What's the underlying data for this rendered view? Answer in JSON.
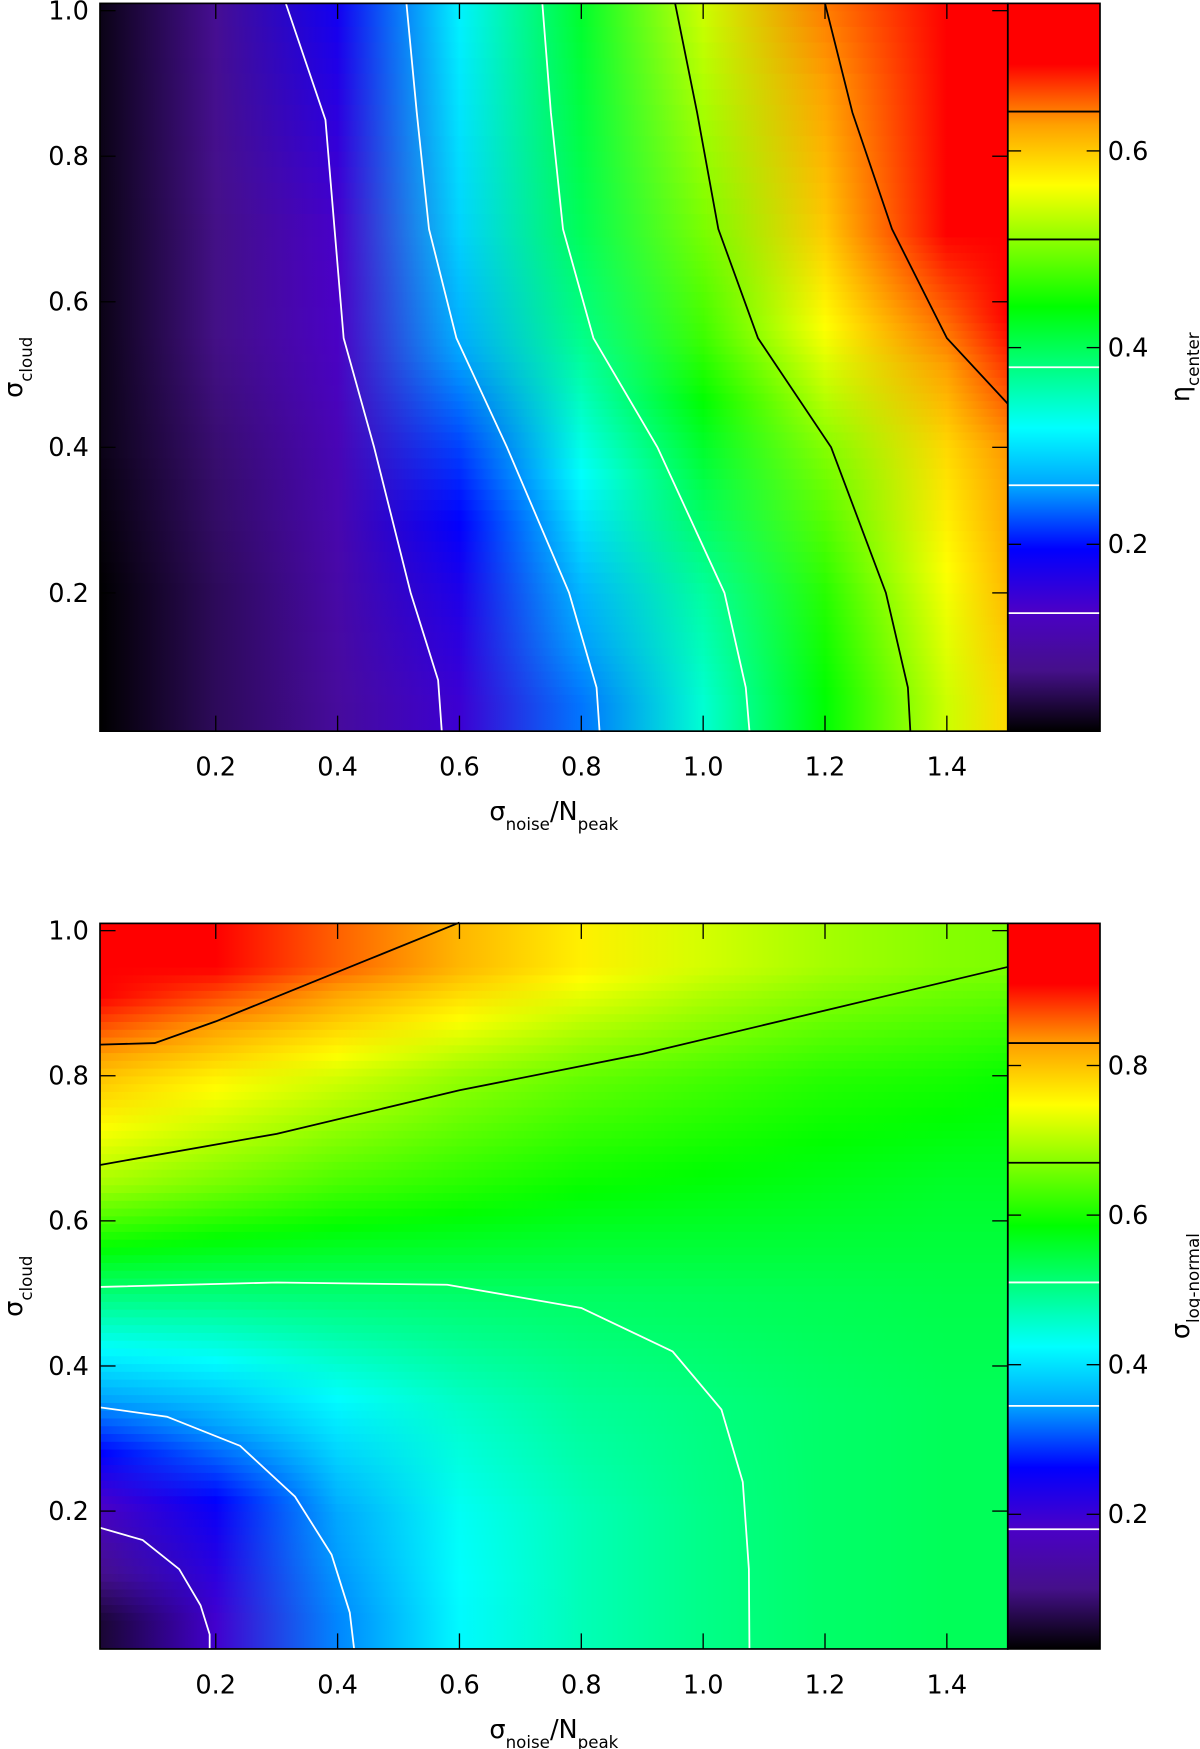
{
  "chart_data": [
    {
      "type": "heatmap",
      "x_label": [
        "σ",
        "noise",
        "/N",
        "peak"
      ],
      "y_label": [
        "σ",
        "cloud"
      ],
      "colorbar_label": [
        "η",
        "center"
      ],
      "xlim": [
        0.01,
        1.5
      ],
      "ylim": [
        0.01,
        1.01
      ],
      "xticks": [
        0.2,
        0.4,
        0.6,
        0.8,
        {
          "value": 1,
          "label": "1.0"
        },
        1.2,
        1.4
      ],
      "yticks": [
        0.2,
        0.4,
        0.6,
        0.8,
        {
          "value": 1,
          "label": "1.0"
        }
      ],
      "clim": [
        0.01,
        0.75
      ],
      "cticks": [
        0.2,
        0.4,
        0.6
      ],
      "colormap": [
        "#000000",
        "#45108a",
        "#4a00c8",
        "#0000ff",
        "#00a0ff",
        "#00ffff",
        "#00ff80",
        "#00ff00",
        "#80ff00",
        "#ffff00",
        "#ffa000",
        "#ff0000",
        "#ff0000"
      ],
      "x": [
        0.01,
        0.2,
        0.4,
        0.6,
        0.8,
        1.0,
        1.2,
        1.4,
        1.5
      ],
      "y": [
        0.05,
        0.2,
        0.4,
        0.55,
        0.7,
        1.0
      ],
      "z": [
        [
          0.01,
          0.05,
          0.09,
          0.145,
          0.24,
          0.34,
          0.44,
          0.54,
          0.59
        ],
        [
          0.01,
          0.05,
          0.1,
          0.17,
          0.27,
          0.365,
          0.46,
          0.56,
          0.61
        ],
        [
          0.02,
          0.06,
          0.115,
          0.22,
          0.33,
          0.42,
          0.505,
          0.59,
          0.63
        ],
        [
          0.02,
          0.07,
          0.13,
          0.265,
          0.375,
          0.47,
          0.56,
          0.64,
          0.68
        ],
        [
          0.02,
          0.07,
          0.135,
          0.29,
          0.4,
          0.5,
          0.6,
          0.69,
          0.72
        ],
        [
          0.02,
          0.08,
          0.18,
          0.31,
          0.42,
          0.54,
          0.64,
          0.72,
          0.75
        ]
      ],
      "contours": [
        {
          "level": 0.13,
          "color": "#ffffff",
          "x": [
            0.315,
            0.38,
            0.395,
            0.41,
            0.46,
            0.52,
            0.565,
            0.571
          ],
          "y": [
            1.01,
            0.85,
            0.7,
            0.55,
            0.4,
            0.2,
            0.08,
            0.01
          ]
        },
        {
          "level": 0.26,
          "color": "#ffffff",
          "x": [
            0.513,
            0.53,
            0.55,
            0.595,
            0.678,
            0.78,
            0.825,
            0.83
          ],
          "y": [
            1.01,
            0.86,
            0.7,
            0.55,
            0.4,
            0.2,
            0.07,
            0.01
          ]
        },
        {
          "level": 0.38,
          "color": "#ffffff",
          "x": [
            0.736,
            0.75,
            0.77,
            0.82,
            0.925,
            1.035,
            1.07,
            1.076
          ],
          "y": [
            1.01,
            0.86,
            0.7,
            0.55,
            0.4,
            0.2,
            0.07,
            0.01
          ]
        },
        {
          "level": 0.51,
          "color": "#000000",
          "x": [
            0.954,
            0.99,
            1.025,
            1.09,
            1.21,
            1.3,
            1.336,
            1.34
          ],
          "y": [
            1.01,
            0.86,
            0.7,
            0.55,
            0.4,
            0.2,
            0.07,
            0.01
          ]
        },
        {
          "level": 0.64,
          "color": "#000000",
          "x": [
            1.2,
            1.245,
            1.31,
            1.4,
            1.5
          ],
          "y": [
            1.01,
            0.86,
            0.7,
            0.55,
            0.46
          ]
        }
      ]
    },
    {
      "type": "heatmap",
      "x_label": [
        "σ",
        "noise",
        "/N",
        "peak"
      ],
      "y_label": [
        "σ",
        "cloud"
      ],
      "colorbar_label": [
        "σ",
        "log-normal"
      ],
      "xlim": [
        0.01,
        1.5
      ],
      "ylim": [
        0.01,
        1.01
      ],
      "xticks": [
        0.2,
        0.4,
        0.6,
        0.8,
        {
          "value": 1,
          "label": "1.0"
        },
        1.2,
        1.4
      ],
      "yticks": [
        0.2,
        0.4,
        0.6,
        0.8,
        {
          "value": 1,
          "label": "1.0"
        }
      ],
      "clim": [
        0.02,
        0.99
      ],
      "cticks": [
        0.2,
        0.4,
        0.6,
        0.8
      ],
      "colormap": [
        "#000000",
        "#45108a",
        "#4a00c8",
        "#0000ff",
        "#00a0ff",
        "#00ffff",
        "#00ff80",
        "#00ff00",
        "#80ff00",
        "#ffff00",
        "#ffa000",
        "#ff0000",
        "#ff0000"
      ],
      "x": [
        0.01,
        0.2,
        0.4,
        0.6,
        0.8,
        1.0,
        1.2,
        1.4,
        1.5
      ],
      "y": [
        0.05,
        0.2,
        0.35,
        0.5,
        0.65,
        0.8,
        0.95
      ],
      "z": [
        [
          0.05,
          0.19,
          0.33,
          0.42,
          0.47,
          0.5,
          0.52,
          0.53,
          0.53
        ],
        [
          0.17,
          0.25,
          0.35,
          0.43,
          0.47,
          0.5,
          0.52,
          0.53,
          0.53
        ],
        [
          0.34,
          0.37,
          0.42,
          0.46,
          0.49,
          0.505,
          0.52,
          0.53,
          0.53
        ],
        [
          0.51,
          0.51,
          0.515,
          0.52,
          0.525,
          0.53,
          0.535,
          0.54,
          0.54
        ],
        [
          0.69,
          0.66,
          0.63,
          0.61,
          0.59,
          0.58,
          0.57,
          0.56,
          0.56
        ],
        [
          0.8,
          0.76,
          0.72,
          0.68,
          0.65,
          0.63,
          0.61,
          0.6,
          0.59
        ],
        [
          0.95,
          0.91,
          0.86,
          0.81,
          0.76,
          0.72,
          0.69,
          0.67,
          0.665
        ]
      ],
      "contours": [
        {
          "level": 0.18,
          "color": "#ffffff",
          "x": [
            0.01,
            0.08,
            0.14,
            0.175,
            0.19,
            0.19
          ],
          "y": [
            0.177,
            0.16,
            0.12,
            0.07,
            0.03,
            0.01
          ]
        },
        {
          "level": 0.345,
          "color": "#ffffff",
          "x": [
            0.01,
            0.12,
            0.24,
            0.33,
            0.39,
            0.42,
            0.427
          ],
          "y": [
            0.343,
            0.33,
            0.29,
            0.22,
            0.14,
            0.06,
            0.01
          ]
        },
        {
          "level": 0.51,
          "color": "#ffffff",
          "x": [
            0.01,
            0.3,
            0.58,
            0.8,
            0.95,
            1.03,
            1.065,
            1.075,
            1.076
          ],
          "y": [
            0.509,
            0.515,
            0.512,
            0.48,
            0.42,
            0.34,
            0.24,
            0.12,
            0.01
          ]
        },
        {
          "level": 0.67,
          "color": "#000000",
          "x": [
            0.01,
            0.3,
            0.6,
            0.9,
            1.2,
            1.5
          ],
          "y": [
            0.677,
            0.72,
            0.78,
            0.83,
            0.89,
            0.95
          ]
        },
        {
          "level": 0.83,
          "color": "#000000",
          "x": [
            0.01,
            0.1,
            0.2,
            0.3,
            0.45,
            0.6
          ],
          "y": [
            0.843,
            0.845,
            0.875,
            0.909,
            0.96,
            1.011
          ]
        }
      ]
    }
  ]
}
